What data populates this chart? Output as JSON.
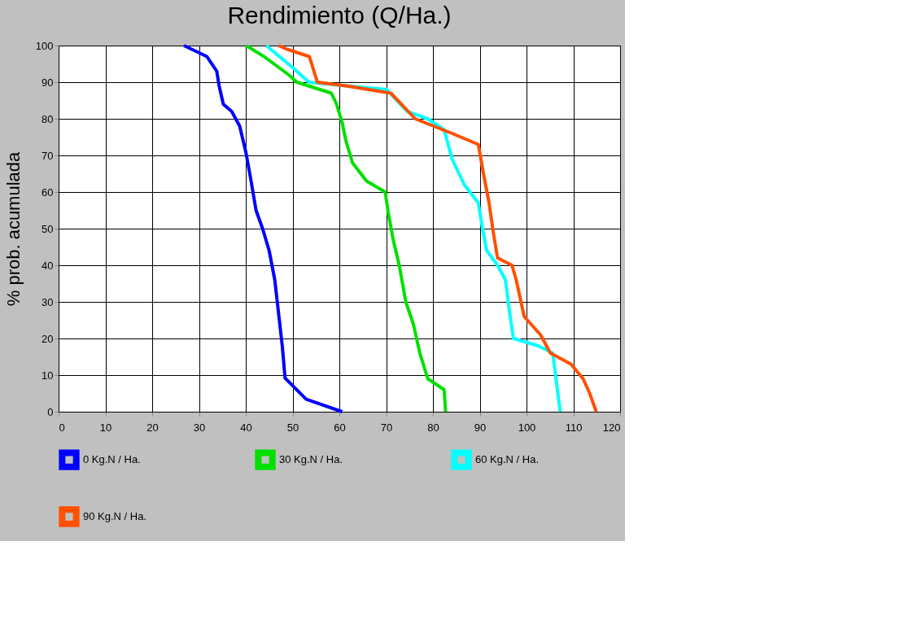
{
  "chart_data": {
    "type": "line",
    "title": "Rendimiento (Q/Ha.)",
    "ylabel": "% prob. acumulada",
    "xlim": [
      0,
      120
    ],
    "xticks": [
      0,
      10,
      20,
      30,
      40,
      50,
      60,
      70,
      80,
      90,
      100,
      110,
      120
    ],
    "ylim": [
      0,
      100
    ],
    "yticks": [
      0,
      10,
      20,
      30,
      40,
      50,
      60,
      70,
      80,
      90,
      100
    ],
    "grid": true,
    "legend": "bottom",
    "marker": "none",
    "line_style": "solid",
    "series": [
      {
        "name": "0 Kg.N / Ha.",
        "color": "#0000ff",
        "x": [
          60.6,
          52.9,
          48.4,
          47.8,
          47,
          46.2,
          45,
          43.6,
          42.2,
          41,
          40,
          38.7,
          37,
          35.2,
          34.3,
          33.8,
          31.7,
          26.8
        ],
        "values": [
          0,
          3.4,
          9.2,
          18,
          27,
          36,
          44,
          50,
          55,
          64,
          71,
          78,
          82,
          84,
          89,
          93,
          97,
          100
        ]
      },
      {
        "name": "30 Kg.N / Ha.",
        "color": "#00e000",
        "x": [
          82.7,
          82.4,
          78.9,
          77.2,
          75.8,
          74.2,
          72.8,
          71.5,
          70.5,
          69.8,
          65.8,
          62.8,
          61.4,
          60.6,
          59.4,
          58.3,
          50.9,
          49.2,
          43.9,
          40.1
        ],
        "values": [
          0,
          6,
          9,
          16,
          24,
          30,
          40,
          47,
          54,
          60,
          63,
          68,
          74,
          79,
          84,
          87,
          90,
          92,
          97,
          100
        ]
      },
      {
        "name": "60 Kg.N / Ha.",
        "color": "#00ffff",
        "x": [
          107.2,
          106.5,
          105.6,
          102.5,
          97.2,
          96.4,
          95.5,
          93.8,
          91.5,
          90.6,
          89.7,
          86.7,
          84.1,
          82.4,
          78.9,
          74.5,
          70.1,
          61.4,
          53.5,
          50,
          44.4
        ],
        "values": [
          0,
          7,
          16,
          18,
          20,
          27,
          36,
          40,
          44,
          50,
          57,
          62,
          69,
          77,
          80,
          82,
          88,
          89,
          90,
          94,
          100
        ]
      },
      {
        "name": "90 Kg.N / Ha.",
        "color": "#ff5000",
        "x": [
          114.9,
          113.5,
          112.1,
          109.5,
          105.1,
          103,
          99.5,
          97.8,
          96.9,
          93.8,
          92.9,
          92,
          90.8,
          89.7,
          84.1,
          76.2,
          74,
          71,
          61.4,
          55.3,
          53.6,
          48.8,
          47
        ],
        "values": [
          0,
          5,
          9,
          13,
          16,
          21,
          26,
          36,
          40,
          42,
          49,
          57,
          65,
          73,
          76,
          80,
          83,
          87,
          89,
          90,
          97,
          99,
          100
        ]
      }
    ]
  }
}
